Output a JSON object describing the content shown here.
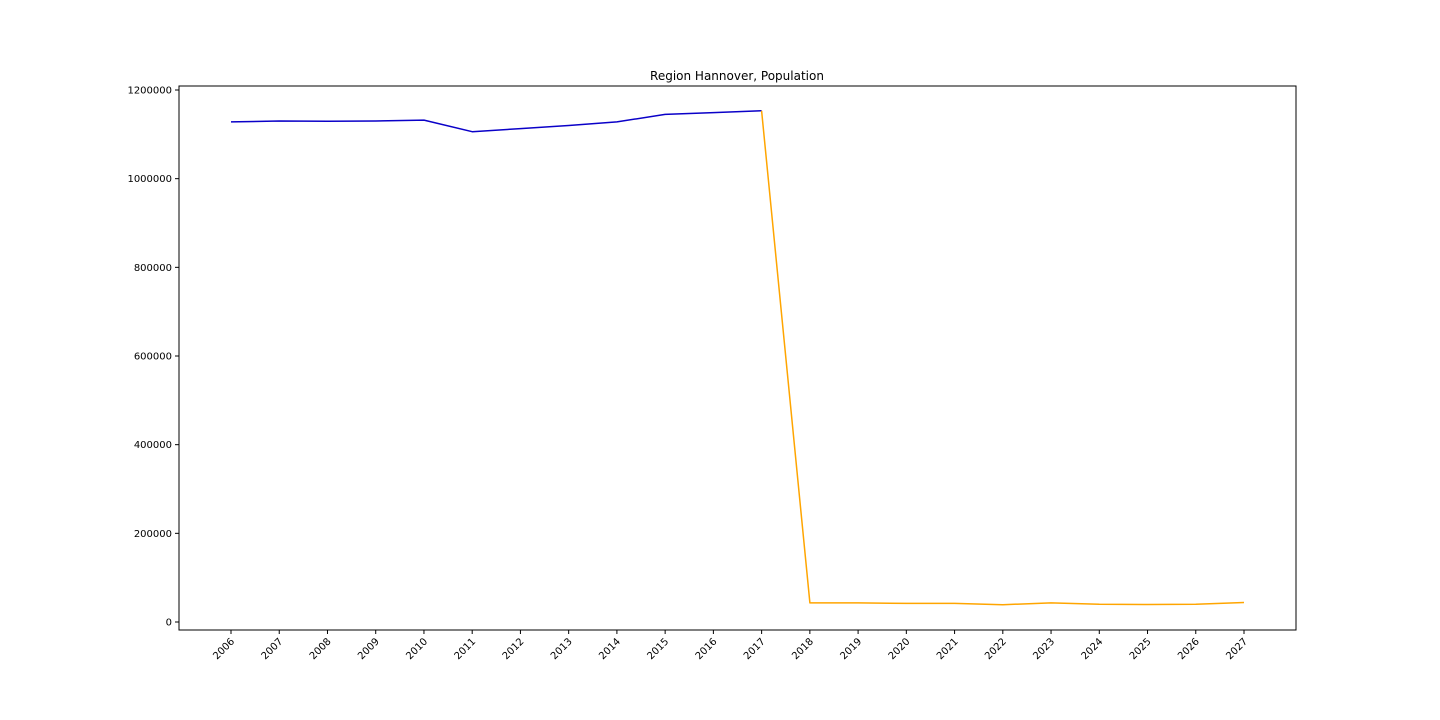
{
  "chart_data": {
    "type": "line",
    "title": "Region Hannover, Population",
    "xlabel": "",
    "ylabel": "",
    "grid": false,
    "ylim": [
      -18000,
      1200000
    ],
    "yticks": [
      0,
      200000,
      400000,
      600000,
      800000,
      1000000,
      1200000
    ],
    "ytick_labels": [
      "0",
      "200000",
      "400000",
      "600000",
      "800000",
      "1000000",
      "1200000"
    ],
    "categories": [
      "2006",
      "2007",
      "2008",
      "2009",
      "2010",
      "2011",
      "2012",
      "2013",
      "2014",
      "2015",
      "2016",
      "2017",
      "2018",
      "2019",
      "2020",
      "2021",
      "2022",
      "2023",
      "2024",
      "2025",
      "2026",
      "2027"
    ],
    "series": [
      {
        "color": "#0a00c8",
        "x": [
          "2006",
          "2007",
          "2008",
          "2009",
          "2010",
          "2011",
          "2012",
          "2013",
          "2014",
          "2015",
          "2016",
          "2017"
        ],
        "values": [
          1128000,
          1130000,
          1129500,
          1130000,
          1132000,
          1106000,
          1113000,
          1120000,
          1128000,
          1145000,
          1149000,
          1153000
        ]
      },
      {
        "color": "#ffa500",
        "x": [
          "2017",
          "2018",
          "2019",
          "2020",
          "2021",
          "2022",
          "2023",
          "2024",
          "2025",
          "2026",
          "2027"
        ],
        "values": [
          1153000,
          43000,
          43000,
          42000,
          42000,
          39000,
          43000,
          40000,
          39500,
          40000,
          44000
        ]
      }
    ]
  }
}
